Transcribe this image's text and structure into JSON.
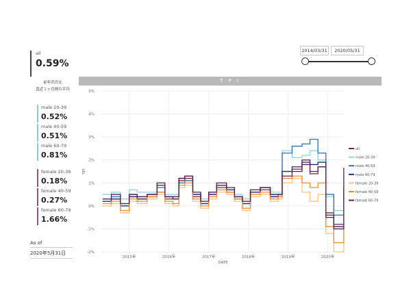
{
  "overall": {
    "label": "all",
    "value": "0.59%",
    "note_line1": "前年同月比",
    "note_line2": "直近１ヶ月間の平均"
  },
  "male": [
    {
      "label": "male 20-39",
      "value": "0.52%",
      "color": "#86c9d9"
    },
    {
      "label": "male 40-59",
      "value": "0.51%",
      "color": "#86c9d9"
    },
    {
      "label": "male 60-79",
      "value": "0.81%",
      "color": "#86c9d9"
    }
  ],
  "female": [
    {
      "label": "female 20-39",
      "value": "0.18%",
      "color": "#9b4f79"
    },
    {
      "label": "female 40-59",
      "value": "0.27%",
      "color": "#9b4f79"
    },
    {
      "label": "female 60-79",
      "value": "1.66%",
      "color": "#9b4f79"
    }
  ],
  "as_of": {
    "label": "As of",
    "date": "2020年5月31日"
  },
  "slicer": {
    "start": "2014/03/31",
    "end": "2020/05/31"
  },
  "chart_data": {
    "type": "line",
    "title": "T P I",
    "xlabel": "DATE",
    "ylabel": "TPI",
    "ylim": [
      -2.0,
      5.0
    ],
    "yticks": [
      -2,
      -1,
      0,
      1,
      2,
      3,
      4,
      5
    ],
    "ytick_labels": [
      "-2%",
      "-1%",
      "0%",
      "1%",
      "2%",
      "3%",
      "4%",
      "5%"
    ],
    "xlim": [
      2014.3,
      2020.42
    ],
    "xticks": [
      2015,
      2016,
      2017,
      2018,
      2019,
      2020
    ],
    "xtick_labels": [
      "2015年",
      "2016年",
      "2017年",
      "2018年",
      "2019年",
      "2020年"
    ],
    "legend_position": "right",
    "series": [
      {
        "name": "all",
        "color": "#7a2535",
        "values": [
          0.2,
          0.3,
          0.0,
          0.4,
          0.3,
          0.5,
          0.6,
          0.3,
          0.3,
          1.1,
          1.2,
          0.4,
          0.1,
          0.5,
          0.8,
          0.6,
          0.4,
          0.1,
          0.6,
          0.7,
          0.4,
          0.5,
          1.5,
          1.6,
          1.9,
          1.4,
          1.7,
          -0.3,
          -0.8,
          0.59
        ]
      },
      {
        "name": "male 20-39",
        "color": "#8fd0e2",
        "values": [
          0.5,
          0.6,
          0.3,
          0.7,
          0.6,
          0.6,
          0.9,
          0.5,
          0.5,
          1.0,
          1.1,
          0.6,
          0.3,
          0.6,
          0.9,
          0.8,
          0.5,
          0.3,
          0.7,
          0.8,
          0.6,
          0.6,
          2.4,
          2.1,
          2.2,
          2.4,
          2.0,
          0.4,
          -0.2,
          0.52
        ]
      },
      {
        "name": "male 40-59",
        "color": "#2e6fb0",
        "values": [
          0.3,
          0.4,
          0.1,
          0.5,
          0.4,
          0.5,
          0.8,
          0.4,
          0.4,
          1.0,
          1.1,
          0.5,
          0.2,
          0.6,
          0.9,
          0.7,
          0.4,
          0.2,
          0.7,
          0.8,
          0.5,
          0.5,
          2.3,
          2.6,
          2.7,
          2.9,
          2.3,
          0.5,
          -0.4,
          0.51
        ]
      },
      {
        "name": "male 60-79",
        "color": "#1c2878",
        "values": [
          0.2,
          0.3,
          0.0,
          0.4,
          0.3,
          0.4,
          0.9,
          0.4,
          0.3,
          1.2,
          1.3,
          0.5,
          0.1,
          0.5,
          0.9,
          0.7,
          0.3,
          0.1,
          0.6,
          0.8,
          0.4,
          0.4,
          1.5,
          1.7,
          2.0,
          1.8,
          1.9,
          -0.4,
          -0.9,
          0.81
        ]
      },
      {
        "name": "female 20-39",
        "color": "#ffc080",
        "values": [
          0.0,
          0.1,
          -0.3,
          0.2,
          0.1,
          0.3,
          0.5,
          0.1,
          0.0,
          0.8,
          0.9,
          0.2,
          -0.1,
          0.3,
          0.6,
          0.5,
          0.2,
          -0.2,
          0.4,
          0.5,
          0.2,
          0.3,
          1.0,
          1.2,
          0.6,
          0.2,
          0.5,
          -1.2,
          -2.0,
          0.18
        ]
      },
      {
        "name": "female 40-59",
        "color": "#f28a2a",
        "values": [
          0.1,
          0.2,
          -0.2,
          0.3,
          0.2,
          0.4,
          0.6,
          0.2,
          0.1,
          0.9,
          1.0,
          0.3,
          0.0,
          0.4,
          0.7,
          0.6,
          0.3,
          -0.1,
          0.5,
          0.6,
          0.3,
          0.4,
          1.2,
          1.3,
          1.0,
          0.8,
          1.0,
          -0.9,
          -1.6,
          0.27
        ]
      },
      {
        "name": "female 60-79",
        "color": "#5c1d4c",
        "values": [
          0.3,
          0.5,
          0.1,
          0.5,
          0.4,
          0.5,
          1.0,
          0.4,
          0.4,
          1.2,
          1.3,
          0.6,
          0.2,
          0.6,
          1.0,
          0.8,
          0.4,
          0.2,
          0.7,
          0.8,
          0.5,
          0.5,
          1.3,
          1.5,
          1.8,
          1.5,
          1.7,
          -0.5,
          -1.0,
          1.66
        ]
      }
    ],
    "x": [
      2014.33,
      2014.55,
      2014.78,
      2015.0,
      2015.2,
      2015.45,
      2015.7,
      2015.9,
      2016.1,
      2016.25,
      2016.4,
      2016.6,
      2016.8,
      2017.0,
      2017.2,
      2017.45,
      2017.65,
      2017.85,
      2018.05,
      2018.3,
      2018.55,
      2018.75,
      2018.85,
      2019.1,
      2019.35,
      2019.55,
      2019.75,
      2019.95,
      2020.15,
      2020.4
    ]
  }
}
